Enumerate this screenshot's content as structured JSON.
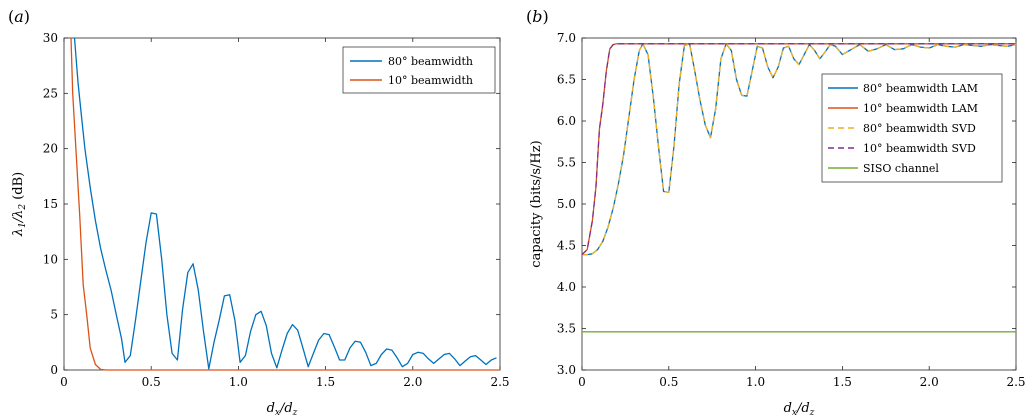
{
  "chart_data": [
    {
      "panel": "(a)",
      "type": "line",
      "xlabel": "d_x/d_z",
      "ylabel": "λ1/λ2 (dB)",
      "xlim": [
        0,
        2.5
      ],
      "ylim": [
        0,
        30
      ],
      "xticks": [
        "0",
        "0.5",
        "1.0",
        "1.5",
        "2.0",
        "2.5"
      ],
      "yticks": [
        "0",
        "5",
        "10",
        "15",
        "20",
        "25",
        "30"
      ],
      "grid": false,
      "legend_position": "top-right",
      "series": [
        {
          "name": "80° beamwidth",
          "color": "#0072BD",
          "x": [
            0.06,
            0.08,
            0.1,
            0.12,
            0.15,
            0.18,
            0.21,
            0.24,
            0.27,
            0.3,
            0.33,
            0.35,
            0.38,
            0.41,
            0.44,
            0.47,
            0.5,
            0.53,
            0.56,
            0.59,
            0.62,
            0.65,
            0.68,
            0.71,
            0.74,
            0.77,
            0.8,
            0.83,
            0.86,
            0.89,
            0.92,
            0.95,
            0.98,
            1.01,
            1.04,
            1.07,
            1.1,
            1.13,
            1.16,
            1.19,
            1.22,
            1.25,
            1.28,
            1.31,
            1.34,
            1.37,
            1.4,
            1.43,
            1.46,
            1.49,
            1.52,
            1.55,
            1.58,
            1.61,
            1.64,
            1.67,
            1.7,
            1.73,
            1.76,
            1.79,
            1.82,
            1.85,
            1.88,
            1.91,
            1.94,
            1.97,
            2.0,
            2.03,
            2.06,
            2.09,
            2.12,
            2.15,
            2.18,
            2.21,
            2.24,
            2.27,
            2.3,
            2.33,
            2.36,
            2.39,
            2.42,
            2.45,
            2.48
          ],
          "y": [
            30,
            26,
            23,
            20,
            16.5,
            13.5,
            11,
            9,
            7.2,
            5,
            2.8,
            0.7,
            1.3,
            4.5,
            8,
            11.5,
            14.2,
            14.1,
            10,
            5,
            1.5,
            0.9,
            5.5,
            8.8,
            9.6,
            7.2,
            3.5,
            0.1,
            2.5,
            4.5,
            6.7,
            6.8,
            4.5,
            0.7,
            1.3,
            3.5,
            5,
            5.3,
            4,
            1.5,
            0.2,
            1.8,
            3.3,
            4.1,
            3.6,
            2,
            0.3,
            1.5,
            2.7,
            3.3,
            3.2,
            2.1,
            0.9,
            0.9,
            2,
            2.6,
            2.5,
            1.6,
            0.4,
            0.6,
            1.4,
            1.9,
            1.8,
            1.1,
            0.3,
            0.6,
            1.4,
            1.6,
            1.5,
            1,
            0.6,
            1,
            1.4,
            1.5,
            1,
            0.4,
            0.8,
            1.2,
            1.3,
            0.9,
            0.5,
            0.9,
            1.1
          ]
        },
        {
          "name": "10° beamwidth",
          "color": "#D95319",
          "x": [
            0.04,
            0.05,
            0.07,
            0.09,
            0.11,
            0.13,
            0.15,
            0.18,
            0.21,
            0.24,
            0.5,
            1.0,
            1.5,
            2.0,
            2.5
          ],
          "y": [
            30,
            25,
            19.5,
            14,
            7.7,
            5,
            2,
            0.5,
            0.05,
            0,
            0,
            0,
            0,
            0,
            0
          ]
        }
      ]
    },
    {
      "panel": "(b)",
      "type": "line",
      "xlabel": "d_x/d_z",
      "ylabel": "capacity (bits/s/Hz)",
      "xlim": [
        0,
        2.5
      ],
      "ylim": [
        3.0,
        7.0
      ],
      "xticks": [
        "0",
        "0.5",
        "1.0",
        "1.5",
        "2.0",
        "2.5"
      ],
      "yticks": [
        "3.0",
        "3.5",
        "4.0",
        "4.5",
        "5.0",
        "5.5",
        "6.0",
        "6.5",
        "7.0"
      ],
      "grid": false,
      "legend_position": "right",
      "series": [
        {
          "name": "80° beamwidth LAM",
          "color": "#0072BD",
          "style": "solid",
          "x": [
            0,
            0.03,
            0.06,
            0.09,
            0.12,
            0.15,
            0.18,
            0.21,
            0.24,
            0.27,
            0.3,
            0.33,
            0.35,
            0.38,
            0.41,
            0.44,
            0.47,
            0.5,
            0.53,
            0.56,
            0.59,
            0.62,
            0.65,
            0.68,
            0.71,
            0.74,
            0.77,
            0.8,
            0.83,
            0.86,
            0.89,
            0.92,
            0.95,
            0.98,
            1.01,
            1.04,
            1.07,
            1.1,
            1.13,
            1.16,
            1.19,
            1.22,
            1.25,
            1.28,
            1.31,
            1.34,
            1.37,
            1.4,
            1.43,
            1.46,
            1.5,
            1.55,
            1.6,
            1.65,
            1.7,
            1.75,
            1.8,
            1.85,
            1.9,
            1.95,
            2.0,
            2.05,
            2.1,
            2.15,
            2.2,
            2.25,
            2.3,
            2.35,
            2.4,
            2.45,
            2.5
          ],
          "y": [
            4.39,
            4.39,
            4.4,
            4.45,
            4.55,
            4.72,
            4.95,
            5.25,
            5.6,
            6.05,
            6.5,
            6.85,
            6.93,
            6.8,
            6.3,
            5.7,
            5.15,
            5.14,
            5.7,
            6.45,
            6.91,
            6.93,
            6.6,
            6.25,
            5.95,
            5.8,
            6.15,
            6.75,
            6.93,
            6.85,
            6.5,
            6.31,
            6.3,
            6.6,
            6.9,
            6.88,
            6.65,
            6.52,
            6.65,
            6.88,
            6.9,
            6.75,
            6.68,
            6.8,
            6.92,
            6.85,
            6.75,
            6.83,
            6.92,
            6.9,
            6.8,
            6.86,
            6.92,
            6.84,
            6.87,
            6.92,
            6.86,
            6.87,
            6.92,
            6.89,
            6.88,
            6.92,
            6.9,
            6.89,
            6.92,
            6.91,
            6.9,
            6.92,
            6.91,
            6.9,
            6.92
          ]
        },
        {
          "name": "10° beamwidth LAM",
          "color": "#D95319",
          "style": "solid",
          "x": [
            0,
            0.03,
            0.06,
            0.08,
            0.1,
            0.12,
            0.14,
            0.16,
            0.18,
            0.2,
            0.25,
            0.5,
            1.0,
            1.5,
            2.0,
            2.5
          ],
          "y": [
            4.39,
            4.45,
            4.8,
            5.2,
            5.9,
            6.2,
            6.6,
            6.87,
            6.92,
            6.93,
            6.93,
            6.93,
            6.93,
            6.93,
            6.93,
            6.93
          ]
        },
        {
          "name": "80° beamwidth SVD",
          "color": "#EDB120",
          "style": "dashed",
          "x": [
            0,
            0.03,
            0.06,
            0.09,
            0.12,
            0.15,
            0.18,
            0.21,
            0.24,
            0.27,
            0.3,
            0.33,
            0.35,
            0.38,
            0.41,
            0.44,
            0.47,
            0.5,
            0.53,
            0.56,
            0.59,
            0.62,
            0.65,
            0.68,
            0.71,
            0.74,
            0.77,
            0.8,
            0.83,
            0.86,
            0.89,
            0.92,
            0.95,
            0.98,
            1.01,
            1.04,
            1.07,
            1.1,
            1.13,
            1.16,
            1.19,
            1.22,
            1.25,
            1.28,
            1.31,
            1.34,
            1.37,
            1.4,
            1.43,
            1.46,
            1.5,
            1.55,
            1.6,
            1.65,
            1.7,
            1.75,
            1.8,
            1.85,
            1.9,
            1.95,
            2.0,
            2.05,
            2.1,
            2.15,
            2.2,
            2.25,
            2.3,
            2.35,
            2.4,
            2.45,
            2.5
          ],
          "y": [
            4.39,
            4.39,
            4.4,
            4.45,
            4.55,
            4.72,
            4.95,
            5.25,
            5.6,
            6.05,
            6.5,
            6.85,
            6.93,
            6.8,
            6.3,
            5.7,
            5.15,
            5.14,
            5.7,
            6.45,
            6.91,
            6.93,
            6.6,
            6.25,
            5.95,
            5.8,
            6.15,
            6.75,
            6.93,
            6.85,
            6.5,
            6.31,
            6.3,
            6.6,
            6.9,
            6.88,
            6.65,
            6.52,
            6.65,
            6.88,
            6.9,
            6.75,
            6.68,
            6.8,
            6.92,
            6.85,
            6.75,
            6.83,
            6.92,
            6.9,
            6.8,
            6.86,
            6.92,
            6.84,
            6.87,
            6.92,
            6.86,
            6.87,
            6.92,
            6.89,
            6.88,
            6.92,
            6.9,
            6.89,
            6.92,
            6.91,
            6.9,
            6.92,
            6.91,
            6.9,
            6.92
          ]
        },
        {
          "name": "10° beamwidth SVD",
          "color": "#7E2F8E",
          "style": "dashed",
          "x": [
            0,
            0.03,
            0.06,
            0.08,
            0.1,
            0.12,
            0.14,
            0.16,
            0.18,
            0.2,
            0.25,
            0.5,
            1.0,
            1.5,
            2.0,
            2.5
          ],
          "y": [
            4.39,
            4.45,
            4.8,
            5.2,
            5.9,
            6.2,
            6.6,
            6.87,
            6.92,
            6.93,
            6.93,
            6.93,
            6.93,
            6.93,
            6.93,
            6.93
          ]
        },
        {
          "name": "SISO channel",
          "color": "#77AC30",
          "style": "solid",
          "x": [
            0,
            2.5
          ],
          "y": [
            3.46,
            3.46
          ]
        }
      ]
    }
  ]
}
